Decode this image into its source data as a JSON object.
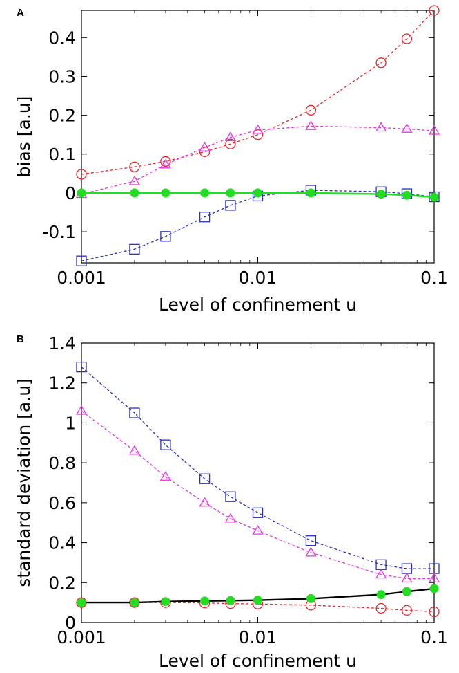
{
  "chart_data": [
    {
      "panel": "A",
      "type": "line",
      "xscale": "log",
      "xlim": [
        0.001,
        0.1
      ],
      "ylim": [
        -0.18,
        0.47
      ],
      "xlabel": "Level of confinement u",
      "ylabel": "bias [a.u]",
      "xticks": [
        0.001,
        0.01,
        0.1
      ],
      "xtick_labels": [
        "0.001",
        "0.01",
        "0.1"
      ],
      "yticks": [
        -0.1,
        0,
        0.1,
        0.2,
        0.3,
        0.4
      ],
      "ytick_labels": [
        "-0.1",
        "0",
        "0.1",
        "0.2",
        "0.3",
        "0.4"
      ],
      "x": [
        0.001,
        0.002,
        0.003,
        0.005,
        0.007,
        0.01,
        0.02,
        0.05,
        0.07,
        0.1
      ],
      "series": [
        {
          "marker": "circle",
          "color": "#e8262b",
          "dash": true,
          "values": [
            0.048,
            0.067,
            0.081,
            0.106,
            0.126,
            0.15,
            0.213,
            0.335,
            0.397,
            0.47
          ]
        },
        {
          "marker": "triangle",
          "color": "#e434e4",
          "dash": true,
          "values": [
            -0.003,
            0.03,
            0.073,
            0.117,
            0.143,
            0.162,
            0.172,
            0.168,
            0.165,
            0.16
          ]
        },
        {
          "marker": "square",
          "color": "#2b2fc4",
          "dash": true,
          "values": [
            -0.175,
            -0.145,
            -0.112,
            -0.062,
            -0.032,
            -0.008,
            0.007,
            0.003,
            -0.002,
            -0.01
          ]
        },
        {
          "marker": "filled-circle",
          "color": "#22dd22",
          "line_color": "#22dd22",
          "dash": false,
          "values": [
            0.0,
            0.0,
            0.0,
            0.0,
            0.0,
            0.0,
            0.0,
            -0.003,
            -0.006,
            -0.011
          ]
        }
      ]
    },
    {
      "panel": "B",
      "type": "line",
      "xscale": "log",
      "xlim": [
        0.001,
        0.1
      ],
      "ylim": [
        0,
        1.4
      ],
      "xlabel": "Level of confinement u",
      "ylabel": "standard deviation [a.u]",
      "xticks": [
        0.001,
        0.01,
        0.1
      ],
      "xtick_labels": [
        "0.001",
        "0.01",
        "0.1"
      ],
      "yticks": [
        0,
        0.2,
        0.4,
        0.6,
        0.8,
        1,
        1.2,
        1.4
      ],
      "ytick_labels": [
        "0",
        "0.2",
        "0.4",
        "0.6",
        "0.8",
        "1",
        "1.2",
        "1.4"
      ],
      "x": [
        0.001,
        0.002,
        0.003,
        0.005,
        0.007,
        0.01,
        0.02,
        0.05,
        0.07,
        0.1
      ],
      "series": [
        {
          "marker": "square",
          "color": "#2b2fc4",
          "dash": true,
          "values": [
            1.28,
            1.05,
            0.89,
            0.72,
            0.63,
            0.55,
            0.41,
            0.29,
            0.27,
            0.27
          ]
        },
        {
          "marker": "triangle",
          "color": "#e434e4",
          "dash": true,
          "values": [
            1.06,
            0.86,
            0.73,
            0.6,
            0.52,
            0.46,
            0.35,
            0.24,
            0.22,
            0.22
          ]
        },
        {
          "marker": "circle",
          "color": "#e8262b",
          "dash": true,
          "values": [
            0.1,
            0.1,
            0.1,
            0.098,
            0.095,
            0.093,
            0.087,
            0.071,
            0.061,
            0.054
          ]
        },
        {
          "marker": "filled-circle",
          "color": "#22dd22",
          "line_color": "#000000",
          "dash": false,
          "values": [
            0.1,
            0.1,
            0.105,
            0.108,
            0.11,
            0.112,
            0.12,
            0.14,
            0.155,
            0.17
          ]
        }
      ]
    }
  ]
}
